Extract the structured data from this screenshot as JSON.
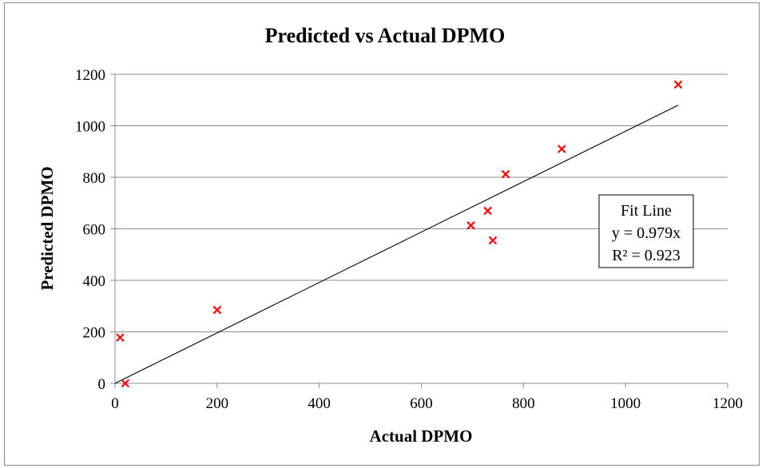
{
  "chart_data": {
    "type": "scatter",
    "title": "Predicted vs Actual DPMO",
    "xlabel": "Actual DPMO",
    "ylabel": "Predicted DPMO",
    "xlim": [
      0,
      1200
    ],
    "ylim": [
      0,
      1200
    ],
    "x_ticks": [
      "0",
      "200",
      "400",
      "600",
      "800",
      "1000",
      "1200"
    ],
    "y_ticks": [
      "0",
      "200",
      "400",
      "600",
      "800",
      "1000",
      "1200"
    ],
    "grid": "horizontal",
    "series": [
      {
        "marker": "x",
        "color": "#ff0000",
        "points": [
          {
            "x": 10,
            "y": 178
          },
          {
            "x": 20,
            "y": 0
          },
          {
            "x": 200,
            "y": 285
          },
          {
            "x": 697,
            "y": 613
          },
          {
            "x": 730,
            "y": 670
          },
          {
            "x": 740,
            "y": 555
          },
          {
            "x": 765,
            "y": 812
          },
          {
            "x": 875,
            "y": 910
          },
          {
            "x": 1103,
            "y": 1160
          }
        ]
      }
    ],
    "fit_line": {
      "slope": 0.979,
      "x_range": [
        0,
        1103
      ],
      "color": "#000000"
    },
    "annotation": {
      "lines": [
        "Fit Line",
        "y = 0.979x",
        "R² = 0.923"
      ],
      "position": "right"
    }
  }
}
